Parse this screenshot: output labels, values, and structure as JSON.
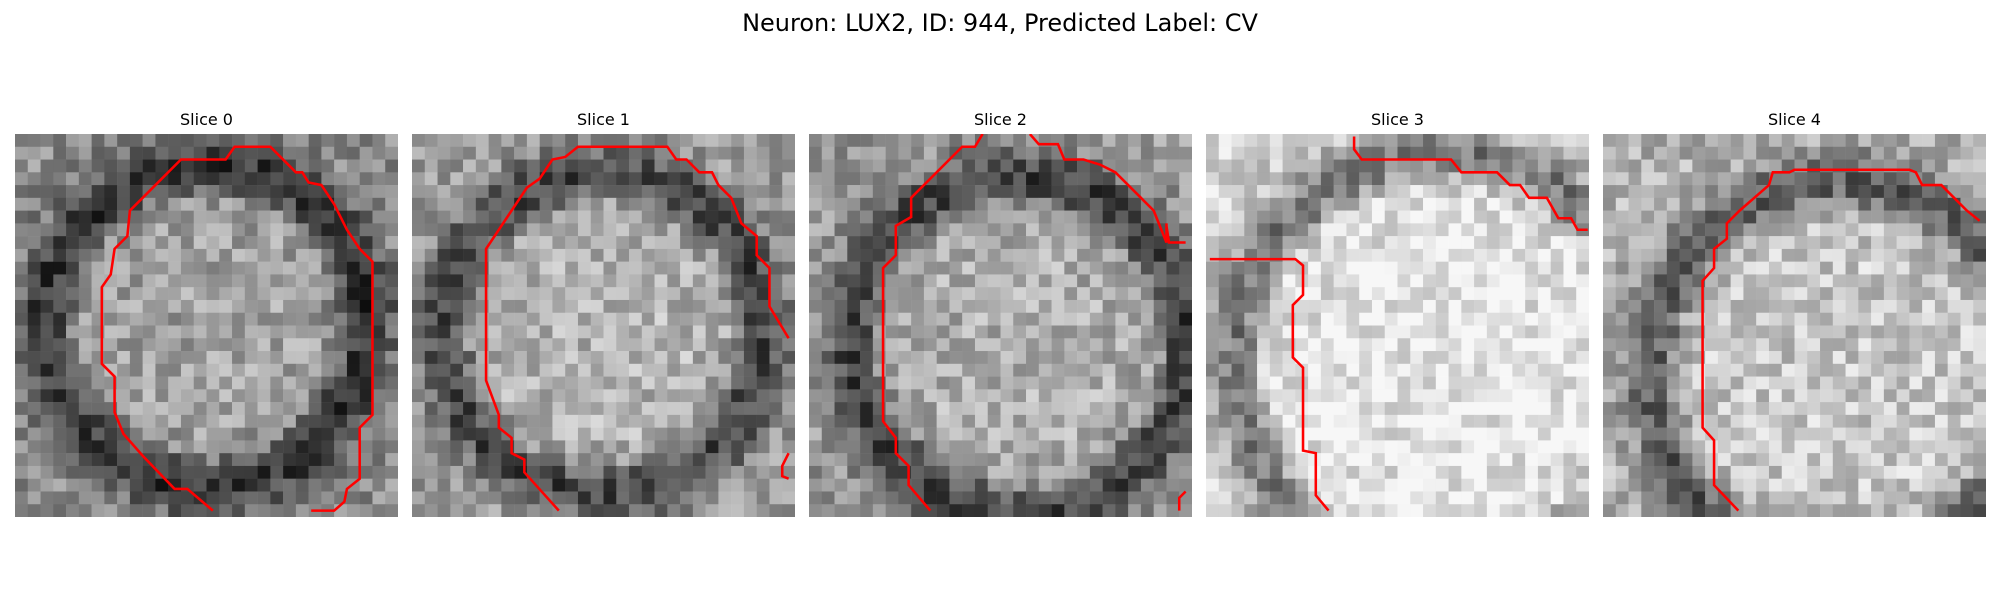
{
  "figure": {
    "title": "Neuron: LUX2, ID: 944, Predicted Label: CV"
  },
  "colors": {
    "contour": "#ff0000",
    "background": "#ffffff"
  },
  "panels": [
    {
      "title": "Slice 0",
      "brightness": 0.55,
      "center": [
        0.5,
        0.5
      ],
      "ring": 0.42,
      "seed": 11
    },
    {
      "title": "Slice 1",
      "brightness": 0.62,
      "center": [
        0.5,
        0.52
      ],
      "ring": 0.42,
      "seed": 23
    },
    {
      "title": "Slice 2",
      "brightness": 0.6,
      "center": [
        0.55,
        0.55
      ],
      "ring": 0.44,
      "seed": 37
    },
    {
      "title": "Slice 3",
      "brightness": 0.82,
      "center": [
        0.62,
        0.6
      ],
      "ring": 0.55,
      "seed": 51
    },
    {
      "title": "Slice 4",
      "brightness": 0.7,
      "center": [
        0.62,
        0.62
      ],
      "ring": 0.5,
      "seed": 67
    }
  ]
}
